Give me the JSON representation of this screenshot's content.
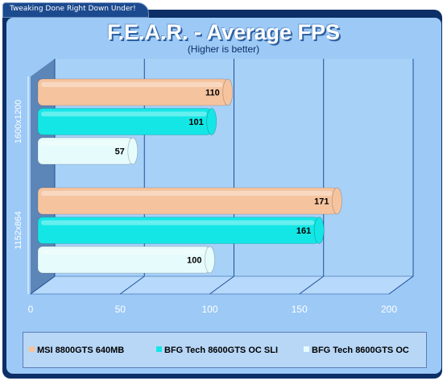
{
  "header": {
    "tab_text": "Tweaking Done Right Down Under!",
    "title": "F.E.A.R. - Average FPS",
    "subtitle": "(Higher is better)"
  },
  "colors": {
    "frame": "#0b2f66",
    "panel": "#9cc9f6",
    "plot": "#a8d1f8",
    "side_wall": "#5d86b8",
    "gridline": "#1f4f9a"
  },
  "chart_data": {
    "type": "bar",
    "orientation": "horizontal",
    "categories": [
      "1600x1200",
      "1152x864"
    ],
    "series": [
      {
        "name": "MSI 8800GTS 640MB",
        "color": "#f5c49f",
        "values": [
          110,
          171
        ]
      },
      {
        "name": "BFG Tech 8600GTS OC  SLI",
        "color": "#14e6e6",
        "values": [
          101,
          161
        ]
      },
      {
        "name": "BFG Tech 8600GTS OC",
        "color": "#e6fbfb",
        "values": [
          57,
          100
        ]
      }
    ],
    "xlim": [
      0,
      200
    ],
    "xticks": [
      "0",
      "50",
      "100",
      "150",
      "200"
    ],
    "grid": true,
    "legend_position": "bottom"
  }
}
